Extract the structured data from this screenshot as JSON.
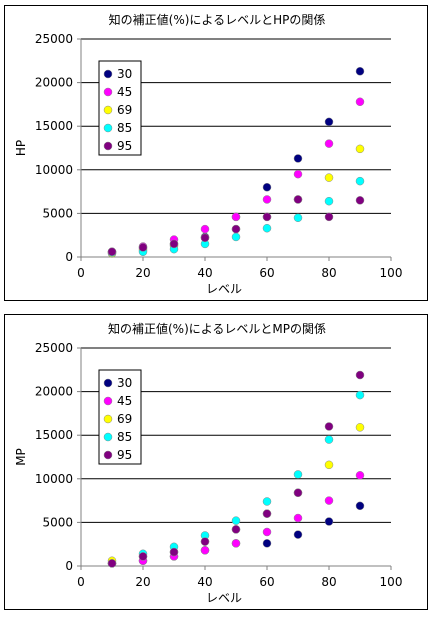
{
  "chart_data": [
    {
      "type": "scatter",
      "title": "知の補正値(%)によるレベルとHPの関係",
      "xlabel": "レベル",
      "ylabel": "HP",
      "xlim": [
        0,
        100
      ],
      "ylim": [
        0,
        25000
      ],
      "xticks": [
        0,
        20,
        40,
        60,
        80,
        100
      ],
      "yticks": [
        0,
        5000,
        10000,
        15000,
        20000,
        25000
      ],
      "grid": "horizontal",
      "legend_position": "left-top",
      "x": [
        10,
        20,
        30,
        40,
        50,
        60,
        70,
        80,
        90
      ],
      "series": [
        {
          "name": "30",
          "color": "#000080",
          "values": [
            600,
            1000,
            1500,
            2300,
            4600,
            8000,
            11300,
            15500,
            21300
          ]
        },
        {
          "name": "45",
          "color": "#ff00ff",
          "values": [
            600,
            1200,
            2000,
            3200,
            4600,
            6600,
            9500,
            13000,
            17800
          ]
        },
        {
          "name": "69",
          "color": "#ffff00",
          "values": [
            400,
            800,
            1300,
            2200,
            3200,
            4600,
            6600,
            9100,
            12400
          ]
        },
        {
          "name": "85",
          "color": "#00ffff",
          "values": [
            500,
            600,
            900,
            1500,
            2300,
            3300,
            4500,
            6400,
            8700
          ]
        },
        {
          "name": "95",
          "color": "#800080",
          "values": [
            600,
            1100,
            1500,
            2200,
            3200,
            4600,
            6600,
            4600,
            6500
          ]
        }
      ]
    },
    {
      "type": "scatter",
      "title": "知の補正値(%)によるレベルとMPの関係",
      "xlabel": "レベル",
      "ylabel": "MP",
      "xlim": [
        0,
        100
      ],
      "ylim": [
        0,
        25000
      ],
      "xticks": [
        0,
        20,
        40,
        60,
        80,
        100
      ],
      "yticks": [
        0,
        5000,
        10000,
        15000,
        20000,
        25000
      ],
      "grid": "horizontal",
      "legend_position": "left-top",
      "x": [
        10,
        20,
        30,
        40,
        50,
        60,
        70,
        80,
        90
      ],
      "series": [
        {
          "name": "30",
          "color": "#000080",
          "values": [
            300,
            600,
            1100,
            1800,
            2600,
            2600,
            3600,
            5100,
            6900
          ]
        },
        {
          "name": "45",
          "color": "#ff00ff",
          "values": [
            300,
            600,
            1100,
            1800,
            2600,
            3900,
            5500,
            7500,
            10400
          ]
        },
        {
          "name": "69",
          "color": "#ffff00",
          "values": [
            600,
            1100,
            1600,
            2800,
            4200,
            6000,
            8400,
            11600,
            15900
          ]
        },
        {
          "name": "85",
          "color": "#00ffff",
          "values": [
            300,
            1400,
            2200,
            3500,
            5200,
            7400,
            10500,
            14500,
            19600
          ]
        },
        {
          "name": "95",
          "color": "#800080",
          "values": [
            300,
            1100,
            1600,
            2800,
            4200,
            6000,
            8400,
            16000,
            21900
          ]
        }
      ]
    }
  ]
}
